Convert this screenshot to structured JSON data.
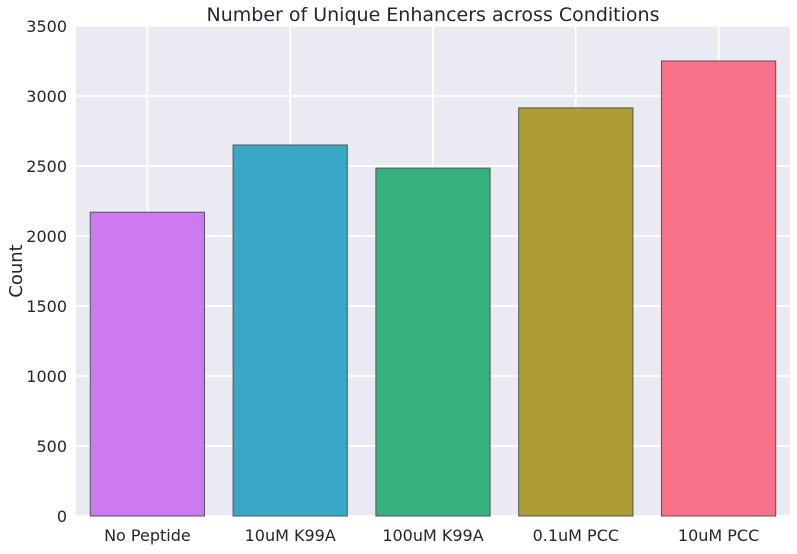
{
  "chart_data": {
    "type": "bar",
    "title": "Number of Unique Enhancers across Conditions",
    "xlabel": "",
    "ylabel": "Count",
    "categories": [
      "No Peptide",
      "10uM K99A",
      "100uM K99A",
      "0.1uM PCC",
      "10uM PCC"
    ],
    "values": [
      2170,
      2650,
      2485,
      2915,
      3250
    ],
    "colors": [
      "#cc79f2",
      "#38a8c6",
      "#34b17c",
      "#ad9d32",
      "#f77289"
    ],
    "ylim": [
      0,
      3500
    ],
    "yticks": [
      0,
      500,
      1000,
      1500,
      2000,
      2500,
      3000,
      3500
    ],
    "grid": true,
    "background": "#eaeaf2",
    "legend": "none"
  }
}
